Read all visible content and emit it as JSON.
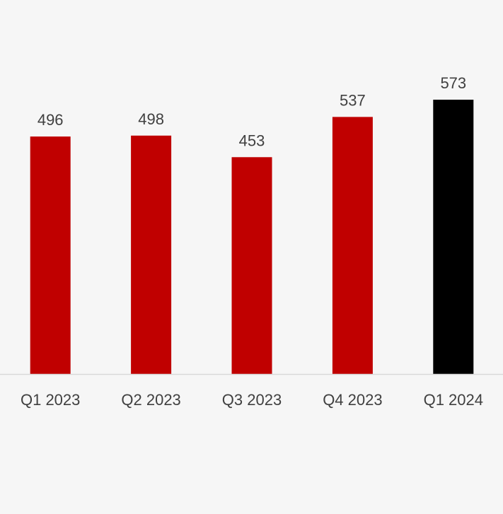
{
  "chart_data": {
    "type": "bar",
    "categories": [
      "Q1 2023",
      "Q2 2023",
      "Q3 2023",
      "Q4 2023",
      "Q1 2024"
    ],
    "values": [
      496,
      498,
      453,
      537,
      573
    ],
    "data_labels": [
      "496",
      "498",
      "453",
      "537",
      "573"
    ],
    "title": "",
    "xlabel": "",
    "ylabel": "",
    "ylim": [
      0,
      600
    ],
    "grid": false,
    "legend": "none",
    "colors": {
      "bar": "#c00000",
      "highlight_bar": "#000000",
      "axis": "#d9d9d9",
      "text": "#404040",
      "background": "#f6f6f6"
    },
    "highlight_index": 4
  }
}
